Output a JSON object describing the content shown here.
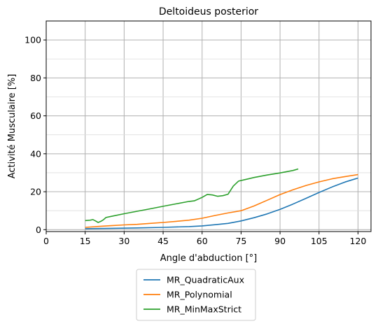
{
  "chart_data": {
    "type": "line",
    "title": "Deltoideus posterior",
    "xlabel": "Angle d'abduction [°]",
    "ylabel": "Activité Musculaire [%]",
    "xlim": [
      0,
      125
    ],
    "ylim": [
      -1,
      110
    ],
    "xticks": [
      0,
      15,
      30,
      45,
      60,
      75,
      90,
      105,
      120
    ],
    "yticks": [
      0,
      20,
      40,
      60,
      80,
      100
    ],
    "y_minor_grid": [
      10,
      30,
      50,
      70,
      90
    ],
    "grid": true,
    "legend_position": "bottom-center-outside",
    "series": [
      {
        "name": "MR_QuadraticAux",
        "color": "#1f77b4",
        "x": [
          15,
          25,
          35,
          45,
          55,
          60,
          65,
          70,
          75,
          80,
          85,
          90,
          95,
          100,
          105,
          110,
          115,
          120
        ],
        "y": [
          0.5,
          0.7,
          0.9,
          1.2,
          1.6,
          2.0,
          2.6,
          3.3,
          4.6,
          6.3,
          8.3,
          10.7,
          13.5,
          16.5,
          19.6,
          22.5,
          25.1,
          27.2
        ]
      },
      {
        "name": "MR_Polynomial",
        "color": "#ff7f0e",
        "x": [
          15,
          20,
          25,
          30,
          35,
          40,
          45,
          50,
          55,
          60,
          65,
          70,
          75,
          80,
          85,
          90,
          95,
          100,
          105,
          110,
          115,
          120
        ],
        "y": [
          1.2,
          1.7,
          2.1,
          2.5,
          2.8,
          3.3,
          3.8,
          4.4,
          5.0,
          6.0,
          7.5,
          8.8,
          10.0,
          12.5,
          15.5,
          18.5,
          21.0,
          23.3,
          25.2,
          26.8,
          28.0,
          29.0
        ]
      },
      {
        "name": "MR_MinMaxStrict",
        "color": "#2ca02c",
        "x": [
          15,
          17,
          18,
          19,
          20,
          21,
          22,
          23,
          25,
          30,
          35,
          40,
          45,
          50,
          55,
          57,
          60,
          62,
          64,
          66,
          68,
          70,
          72,
          74,
          76,
          80,
          85,
          90,
          95,
          97
        ],
        "y": [
          4.8,
          5.0,
          5.3,
          4.6,
          3.8,
          4.4,
          5.2,
          6.4,
          7.0,
          8.4,
          9.7,
          11.0,
          12.3,
          13.6,
          14.9,
          15.2,
          17.0,
          18.6,
          18.3,
          17.6,
          17.9,
          18.7,
          23.0,
          25.6,
          26.2,
          27.5,
          28.8,
          29.9,
          31.2,
          32.0
        ]
      }
    ]
  }
}
